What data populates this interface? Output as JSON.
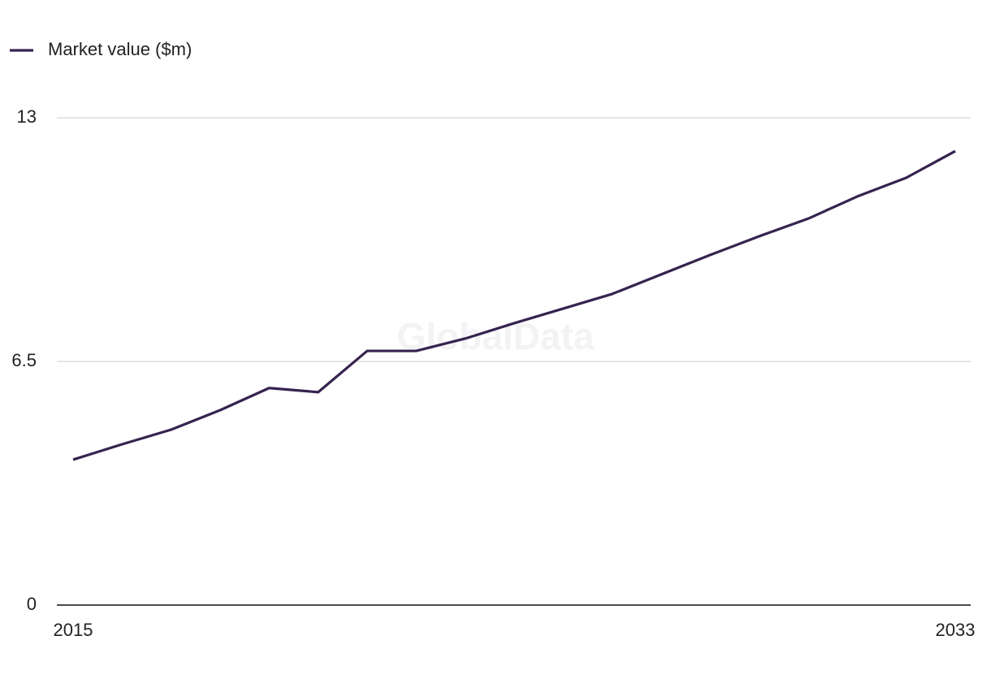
{
  "chart_data": {
    "type": "line",
    "categories": [
      "2015",
      null,
      null,
      null,
      null,
      null,
      null,
      null,
      null,
      null,
      null,
      null,
      null,
      null,
      null,
      null,
      null,
      null,
      "2033"
    ],
    "series": [
      {
        "name": "Market value ($m)",
        "color": "#36234f",
        "values": [
          3.88,
          4.29,
          4.68,
          5.2,
          5.79,
          5.68,
          6.78,
          6.78,
          7.11,
          7.52,
          7.91,
          8.3,
          8.82,
          9.34,
          9.84,
          10.31,
          10.9,
          11.4,
          12.11
        ]
      }
    ],
    "ylim": [
      0,
      13
    ],
    "yticks": [
      0,
      6.5,
      13
    ],
    "grid": true,
    "legend": "top-left",
    "watermark": "GlobalData"
  }
}
